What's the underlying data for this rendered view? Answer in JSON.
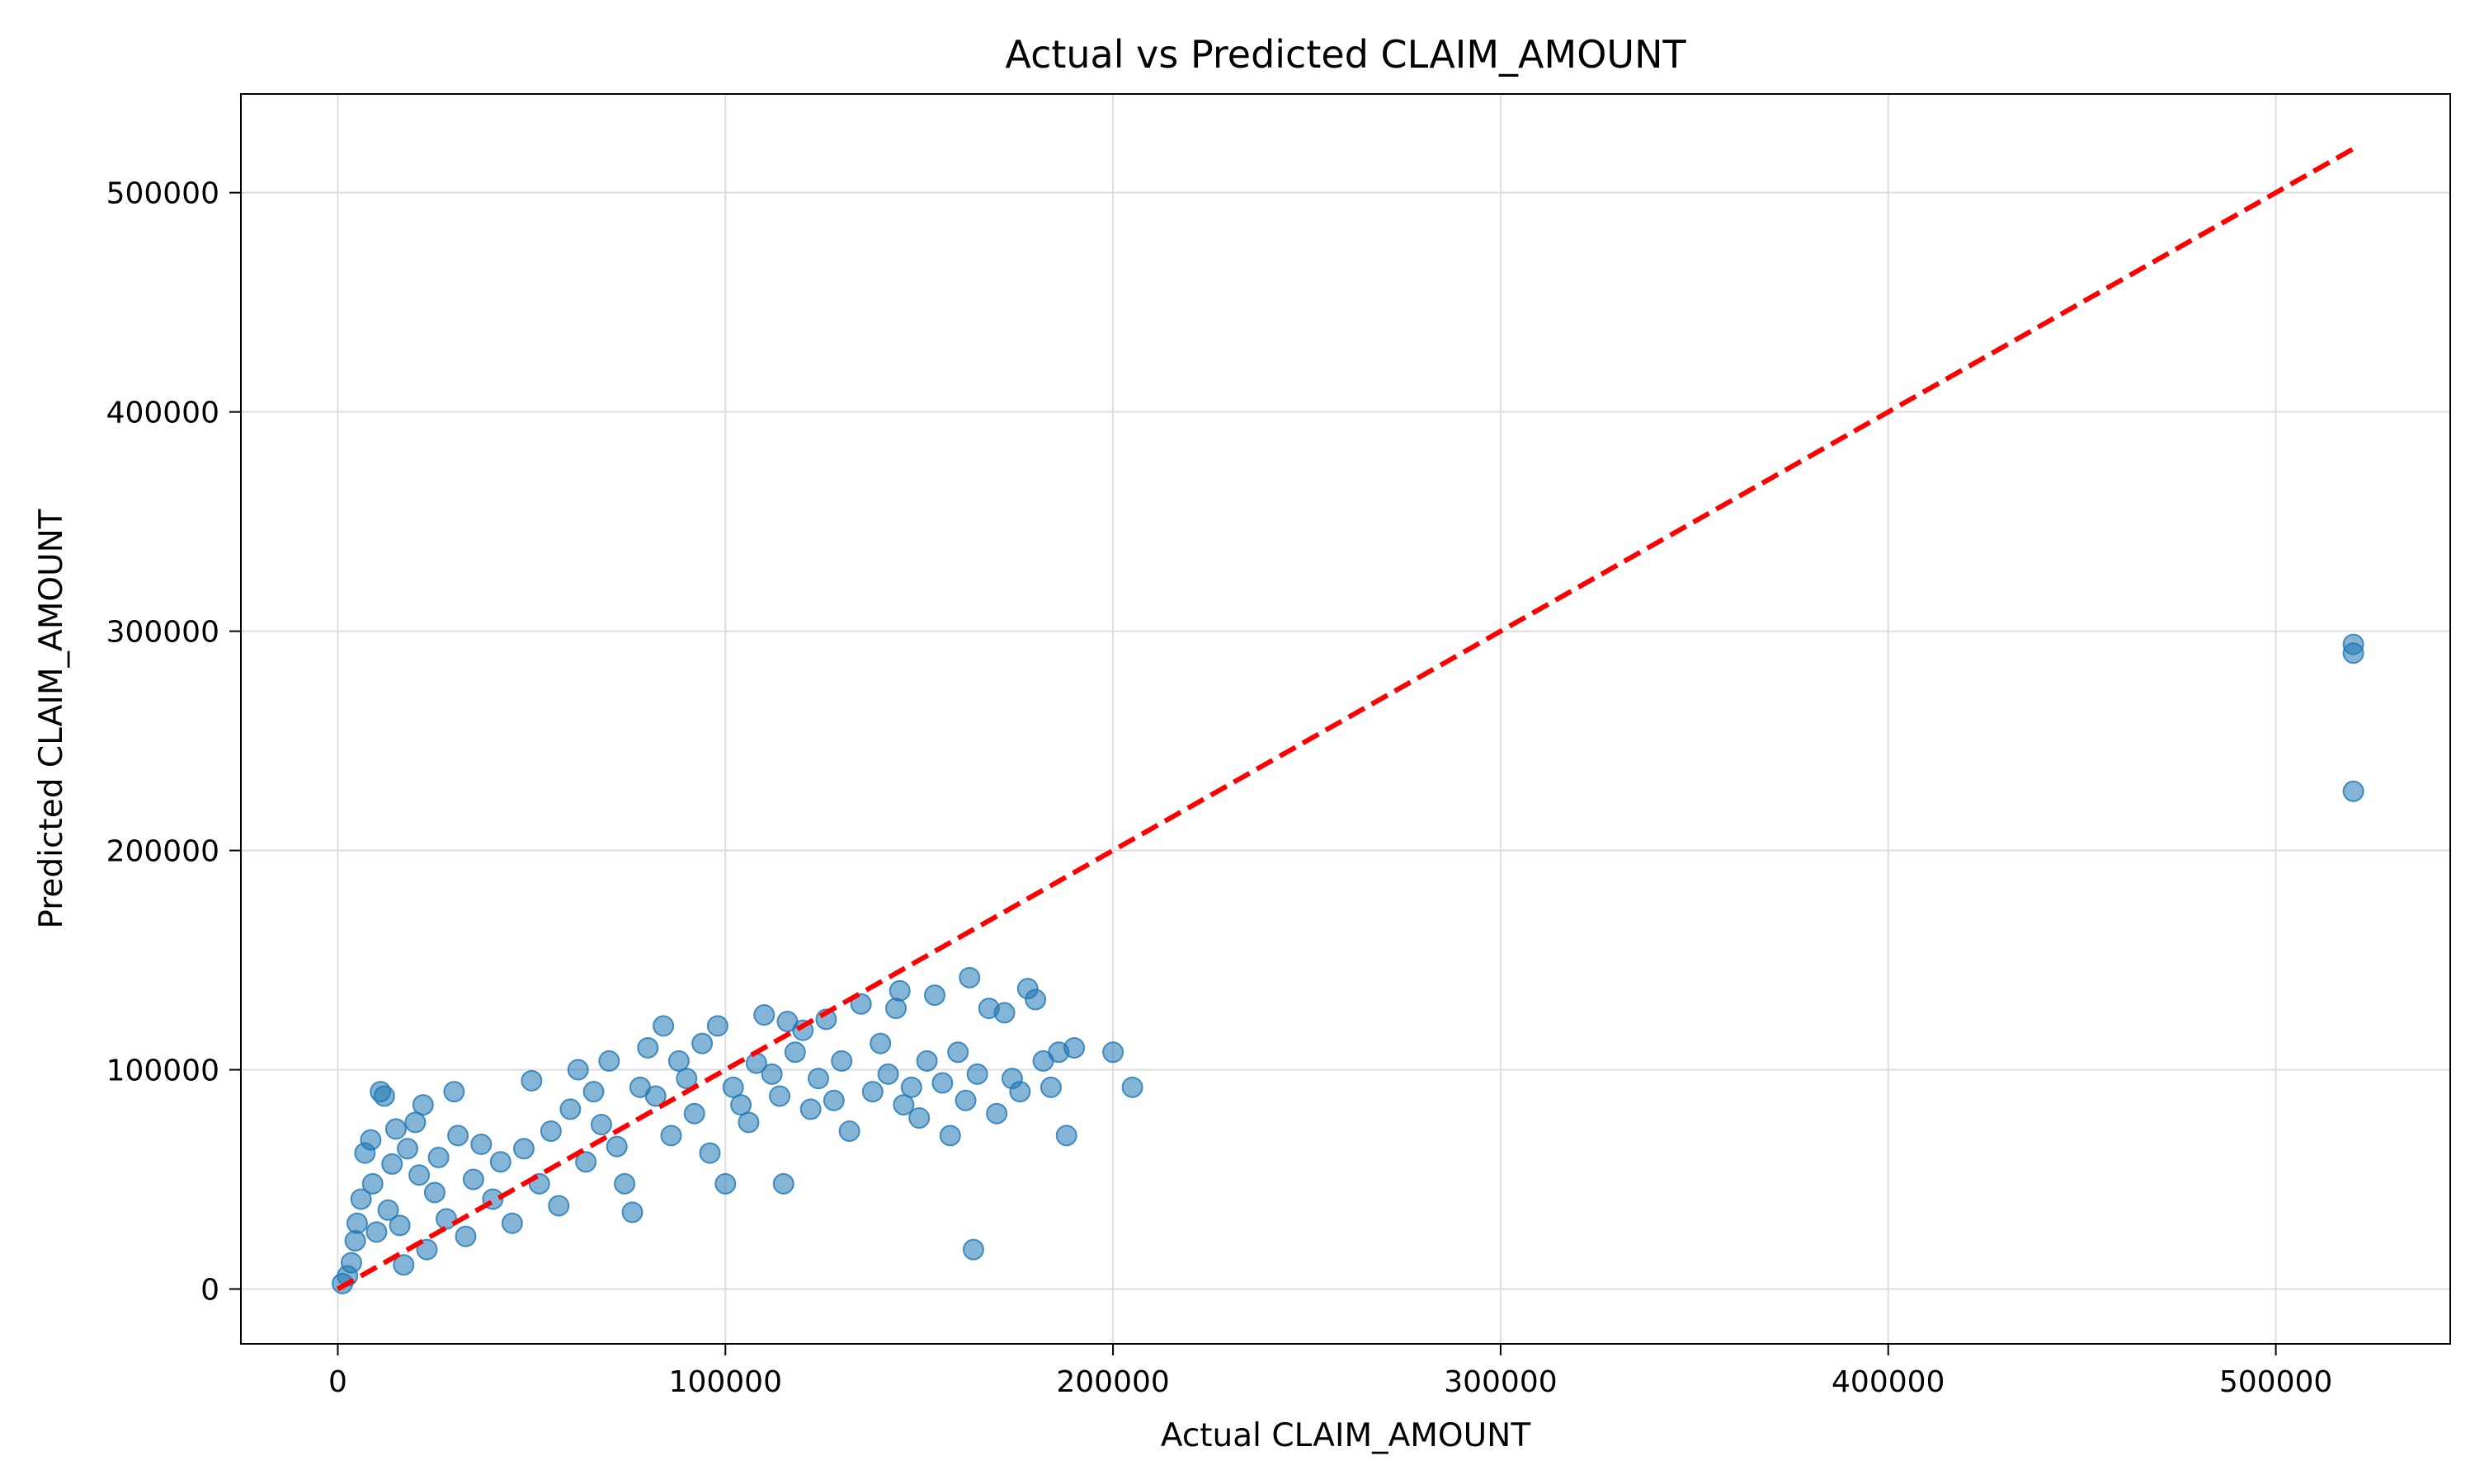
{
  "chart_data": {
    "type": "scatter",
    "title": "Actual vs Predicted CLAIM_AMOUNT",
    "xlabel": "Actual CLAIM_AMOUNT",
    "ylabel": "Predicted CLAIM_AMOUNT",
    "xlim": [
      -25000,
      545000
    ],
    "ylim": [
      -25000,
      545000
    ],
    "xticks": [
      0,
      100000,
      200000,
      300000,
      400000,
      500000
    ],
    "yticks": [
      0,
      100000,
      200000,
      300000,
      400000,
      500000
    ],
    "xtick_labels": [
      "0",
      "100000",
      "200000",
      "300000",
      "400000",
      "500000"
    ],
    "ytick_labels": [
      "0",
      "100000",
      "200000",
      "300000",
      "400000",
      "500000"
    ],
    "grid": true,
    "legend": "none",
    "colors": {
      "points": "#1f77b4",
      "reference_line": "#ff0000",
      "grid": "#dddddd",
      "axes": "#000000"
    },
    "reference_line": {
      "style": "dashed",
      "from": [
        0,
        0
      ],
      "to": [
        520000,
        520000
      ]
    },
    "series": [
      {
        "points": [
          [
            1200,
            2500
          ],
          [
            2500,
            6000
          ],
          [
            3500,
            12000
          ],
          [
            4500,
            22000
          ],
          [
            5000,
            30000
          ],
          [
            6000,
            41000
          ],
          [
            7000,
            62000
          ],
          [
            8500,
            68000
          ],
          [
            9000,
            48000
          ],
          [
            10000,
            26000
          ],
          [
            11000,
            90000
          ],
          [
            12000,
            88000
          ],
          [
            13000,
            36000
          ],
          [
            14000,
            57000
          ],
          [
            15000,
            73000
          ],
          [
            16000,
            29000
          ],
          [
            17000,
            11000
          ],
          [
            18000,
            64000
          ],
          [
            20000,
            76000
          ],
          [
            21000,
            52000
          ],
          [
            22000,
            84000
          ],
          [
            23000,
            18000
          ],
          [
            25000,
            44000
          ],
          [
            26000,
            60000
          ],
          [
            28000,
            32000
          ],
          [
            30000,
            90000
          ],
          [
            31000,
            70000
          ],
          [
            33000,
            24000
          ],
          [
            35000,
            50000
          ],
          [
            37000,
            66000
          ],
          [
            40000,
            41000
          ],
          [
            42000,
            58000
          ],
          [
            45000,
            30000
          ],
          [
            48000,
            64000
          ],
          [
            50000,
            95000
          ],
          [
            52000,
            48000
          ],
          [
            55000,
            72000
          ],
          [
            57000,
            38000
          ],
          [
            60000,
            82000
          ],
          [
            62000,
            100000
          ],
          [
            64000,
            58000
          ],
          [
            66000,
            90000
          ],
          [
            68000,
            75000
          ],
          [
            70000,
            104000
          ],
          [
            72000,
            65000
          ],
          [
            74000,
            48000
          ],
          [
            76000,
            35000
          ],
          [
            78000,
            92000
          ],
          [
            80000,
            110000
          ],
          [
            82000,
            88000
          ],
          [
            84000,
            120000
          ],
          [
            86000,
            70000
          ],
          [
            88000,
            104000
          ],
          [
            90000,
            96000
          ],
          [
            92000,
            80000
          ],
          [
            94000,
            112000
          ],
          [
            96000,
            62000
          ],
          [
            98000,
            120000
          ],
          [
            100000,
            48000
          ],
          [
            102000,
            92000
          ],
          [
            104000,
            84000
          ],
          [
            106000,
            76000
          ],
          [
            108000,
            103000
          ],
          [
            110000,
            125000
          ],
          [
            112000,
            98000
          ],
          [
            114000,
            88000
          ],
          [
            115000,
            48000
          ],
          [
            116000,
            122000
          ],
          [
            118000,
            108000
          ],
          [
            120000,
            118000
          ],
          [
            122000,
            82000
          ],
          [
            124000,
            96000
          ],
          [
            126000,
            123000
          ],
          [
            128000,
            86000
          ],
          [
            130000,
            104000
          ],
          [
            132000,
            72000
          ],
          [
            135000,
            130000
          ],
          [
            138000,
            90000
          ],
          [
            140000,
            112000
          ],
          [
            142000,
            98000
          ],
          [
            144000,
            128000
          ],
          [
            145000,
            136000
          ],
          [
            146000,
            84000
          ],
          [
            148000,
            92000
          ],
          [
            150000,
            78000
          ],
          [
            152000,
            104000
          ],
          [
            154000,
            134000
          ],
          [
            156000,
            94000
          ],
          [
            158000,
            70000
          ],
          [
            160000,
            108000
          ],
          [
            162000,
            86000
          ],
          [
            163000,
            142000
          ],
          [
            164000,
            18000
          ],
          [
            165000,
            98000
          ],
          [
            168000,
            128000
          ],
          [
            170000,
            80000
          ],
          [
            172000,
            126000
          ],
          [
            174000,
            96000
          ],
          [
            176000,
            90000
          ],
          [
            178000,
            137000
          ],
          [
            180000,
            132000
          ],
          [
            182000,
            104000
          ],
          [
            184000,
            92000
          ],
          [
            186000,
            108000
          ],
          [
            188000,
            70000
          ],
          [
            190000,
            110000
          ],
          [
            200000,
            108000
          ],
          [
            205000,
            92000
          ],
          [
            520000,
            294000
          ],
          [
            520000,
            290000
          ],
          [
            520000,
            227000
          ]
        ]
      }
    ]
  }
}
